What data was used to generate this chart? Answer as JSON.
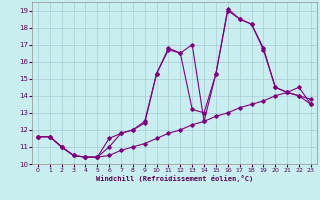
{
  "xlabel": "Windchill (Refroidissement éolien,°C)",
  "bg_color": "#c8eef0",
  "grid_color": "#a8cdd4",
  "line_color": "#800080",
  "xlim": [
    -0.5,
    23.5
  ],
  "ylim": [
    10,
    19.5
  ],
  "xticks": [
    0,
    1,
    2,
    3,
    4,
    5,
    6,
    7,
    8,
    9,
    10,
    11,
    12,
    13,
    14,
    15,
    16,
    17,
    18,
    19,
    20,
    21,
    22,
    23
  ],
  "yticks": [
    10,
    11,
    12,
    13,
    14,
    15,
    16,
    17,
    18,
    19
  ],
  "line1_x": [
    0,
    2,
    3,
    4,
    5,
    6,
    7,
    8,
    9,
    10,
    11,
    12,
    13,
    14,
    15,
    16,
    17,
    18,
    19,
    20,
    21,
    22,
    23
  ],
  "line1_y": [
    11.6,
    11.0,
    10.5,
    10.4,
    10.4,
    11.5,
    11.8,
    12.0,
    12.4,
    15.3,
    16.7,
    16.5,
    13.2,
    13.0,
    15.3,
    19.0,
    18.5,
    18.2,
    16.7,
    14.5,
    14.2,
    14.0,
    13.5
  ],
  "line2_y": [
    11.6,
    11.0,
    10.5,
    10.4,
    10.4,
    11.0,
    11.8,
    12.0,
    12.5,
    15.3,
    16.8,
    16.5,
    17.0,
    12.5,
    15.3,
    19.1,
    18.5,
    18.2,
    16.8,
    14.5,
    14.2,
    14.0,
    13.8
  ],
  "line3_y": [
    11.6,
    11.0,
    10.5,
    10.4,
    10.4,
    10.5,
    10.8,
    11.0,
    11.2,
    11.5,
    11.8,
    12.0,
    12.3,
    12.5,
    12.8,
    13.0,
    13.3,
    13.5,
    13.7,
    14.0,
    14.2,
    14.5,
    13.5
  ],
  "line1_x_full": [
    0,
    1,
    2,
    3,
    4,
    5,
    6,
    7,
    8,
    9,
    10,
    11,
    12,
    13,
    14,
    15,
    16,
    17,
    18,
    19,
    20,
    21,
    22,
    23
  ],
  "line1_y_full": [
    11.6,
    11.6,
    11.0,
    10.5,
    10.4,
    10.4,
    11.5,
    11.8,
    12.0,
    12.4,
    15.3,
    16.7,
    16.5,
    13.2,
    13.0,
    15.3,
    19.0,
    18.5,
    18.2,
    16.7,
    14.5,
    14.2,
    14.0,
    13.5
  ],
  "line2_y_full": [
    11.6,
    11.6,
    11.0,
    10.5,
    10.4,
    10.4,
    11.0,
    11.8,
    12.0,
    12.5,
    15.3,
    16.8,
    16.5,
    17.0,
    12.5,
    15.3,
    19.1,
    18.5,
    18.2,
    16.8,
    14.5,
    14.2,
    14.0,
    13.8
  ],
  "line3_y_full": [
    11.6,
    11.6,
    11.0,
    10.5,
    10.4,
    10.4,
    10.5,
    10.8,
    11.0,
    11.2,
    11.5,
    11.8,
    12.0,
    12.3,
    12.5,
    12.8,
    13.0,
    13.3,
    13.5,
    13.7,
    14.0,
    14.2,
    14.5,
    13.5
  ]
}
